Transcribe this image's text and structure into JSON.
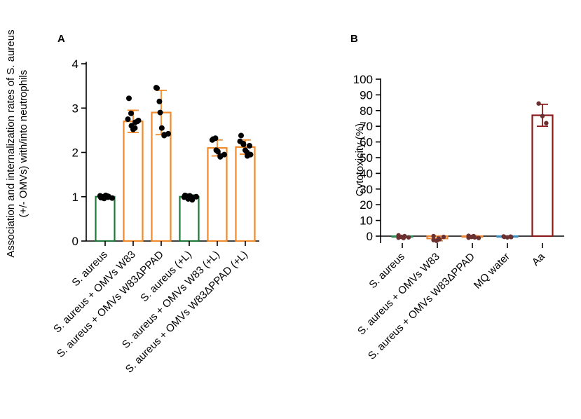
{
  "chart_data": [
    {
      "type": "bar",
      "panel": "A",
      "ylabel_lines": [
        "Association and internalization rates of S. aureus",
        "(+/-  OMVs) with/into neutrophils"
      ],
      "xlabel": "",
      "ylim": [
        0,
        4
      ],
      "yticks": [
        "0",
        "1",
        "2",
        "3",
        "4"
      ],
      "categories": [
        "S. aureus",
        "S. aureus + OMVs W83",
        "S. aureus + OMVs W83ΔPPAD",
        "S. aureus (+L)",
        "S. aureus + OMVs W83 (+L)",
        "S. aureus + OMVs W83ΔPPAD (+L)"
      ],
      "values": [
        1.0,
        2.7,
        2.9,
        1.0,
        2.1,
        2.12
      ],
      "errors": [
        0.04,
        0.25,
        0.5,
        0.04,
        0.18,
        0.16
      ],
      "colors": [
        "#1f7a3a",
        "#f08a2c",
        "#f08a2c",
        "#1f7a3a",
        "#f08a2c",
        "#f08a2c"
      ],
      "points": [
        [
          0.98,
          1.02,
          1.0,
          0.96,
          1.03,
          0.99,
          1.01,
          0.97
        ],
        [
          3.22,
          2.75,
          2.88,
          2.6,
          2.52,
          2.55,
          2.68,
          2.72,
          2.7
        ],
        [
          3.45,
          3.46,
          3.15,
          2.9,
          2.55,
          2.4,
          2.38,
          2.42
        ],
        [
          1.03,
          0.99,
          1.01,
          0.95,
          1.02,
          0.98,
          0.93,
          1.0
        ],
        [
          2.3,
          2.28,
          2.32,
          2.05,
          2.02,
          1.92,
          1.9,
          1.95
        ],
        [
          2.38,
          2.25,
          2.2,
          2.18,
          2.05,
          2.0,
          1.92,
          1.95,
          2.15
        ]
      ],
      "point_color": "#000000"
    },
    {
      "type": "bar",
      "panel": "B",
      "ylabel": "Cytotoxicity (%)",
      "xlabel": "",
      "ylim": [
        -5,
        100
      ],
      "yticks": [
        "0",
        "10",
        "20",
        "30",
        "40",
        "50",
        "60",
        "70",
        "80",
        "90",
        "100"
      ],
      "categories": [
        "S. aureus",
        "S. aureus + OMVs W83",
        "S. aureus + OMVs W83ΔPPAD",
        "MQ water",
        "Aa"
      ],
      "values": [
        -0.5,
        -1.5,
        -0.5,
        -0.5,
        77
      ],
      "errors": [
        0.5,
        1.5,
        0.8,
        0.4,
        7
      ],
      "colors": [
        "#2e8a57",
        "#e8873a",
        "#e8873a",
        "#3a8fc0",
        "#8b1a1a"
      ],
      "points": [
        [
          0.5,
          -1.0,
          -0.5,
          -1.2,
          0.0,
          -0.8
        ],
        [
          0.0,
          -2.5,
          -3.0,
          -1.5,
          -2.0,
          -0.5
        ],
        [
          0.2,
          -1.0,
          -0.5,
          0.0,
          -0.8,
          -1.2
        ],
        [
          -0.2,
          -0.5,
          -0.8,
          -0.3,
          -0.6
        ],
        [
          84.5,
          76.5,
          72.0
        ]
      ],
      "point_color": "#6b3030"
    }
  ]
}
